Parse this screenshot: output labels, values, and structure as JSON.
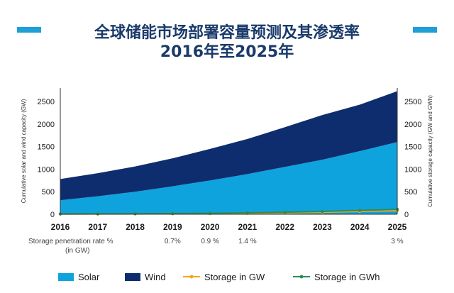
{
  "title": {
    "line1": "全球储能市场部署容量预测及其渗透率",
    "line2": "2016年至2025年"
  },
  "chart_data": {
    "type": "area",
    "x": [
      2016,
      2017,
      2018,
      2019,
      2020,
      2021,
      2022,
      2023,
      2024,
      2025
    ],
    "xticks": [
      "2016",
      "2017",
      "2018",
      "2019",
      "2020",
      "2021",
      "2022",
      "2023",
      "2024",
      "2025"
    ],
    "yticks": [
      "0",
      "500",
      "1000",
      "1500",
      "2000",
      "2500"
    ],
    "ylim": [
      0,
      2800
    ],
    "ylabel_left": "Cumulative solar and wind capacity (GW)",
    "ylabel_right": "Cumulative storage capacity (GW and GWh)",
    "stacked": true,
    "series": [
      {
        "name": "Solar",
        "kind": "area",
        "color": "#0fa3de",
        "values": [
          310,
          400,
          500,
          620,
          750,
          890,
          1050,
          1210,
          1400,
          1600
        ]
      },
      {
        "name": "Wind",
        "kind": "area",
        "color": "#0e2d6e",
        "values": [
          470,
          510,
          560,
          620,
          700,
          780,
          880,
          990,
          1030,
          1130
        ]
      },
      {
        "name": "Storage in GW",
        "kind": "line",
        "color": "#f2a81d",
        "values": [
          5,
          6,
          8,
          10,
          14,
          20,
          30,
          45,
          62,
          80
        ]
      },
      {
        "name": "Storage in GWh",
        "kind": "line",
        "color": "#2e8b57",
        "values": [
          6,
          8,
          11,
          16,
          22,
          32,
          45,
          62,
          85,
          110
        ]
      }
    ],
    "penetration": {
      "label_line1": "Storage penetration rate %",
      "label_line2": "(in GW)",
      "entries": [
        {
          "year": 2019,
          "text": "0.7%"
        },
        {
          "year": 2020,
          "text": "0.9 %"
        },
        {
          "year": 2021,
          "text": "1.4 %"
        },
        {
          "year": 2025,
          "text": "3 %"
        }
      ]
    },
    "legend_position": "bottom"
  }
}
